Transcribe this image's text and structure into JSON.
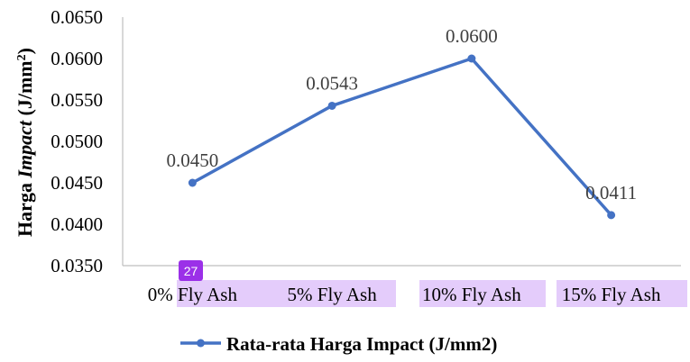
{
  "chart_data": {
    "type": "line",
    "title": "",
    "categories": [
      "0% Fly Ash",
      "5% Fly Ash",
      "10% Fly Ash",
      "15% Fly Ash"
    ],
    "series": [
      {
        "name": "Rata-rata Harga Impact (J/mm2)",
        "values": [
          0.045,
          0.0543,
          0.06,
          0.0411
        ],
        "color": "#4472c4"
      }
    ],
    "data_labels": [
      "0.0450",
      "0.0543",
      "0.0600",
      "0.0411"
    ],
    "ylabel_parts": [
      "Harga ",
      "Impact",
      " (J/mm",
      "2",
      ")"
    ],
    "ylim": [
      0.035,
      0.065
    ],
    "yticks": [
      "0.0350",
      "0.0400",
      "0.0450",
      "0.0500",
      "0.0550",
      "0.0600",
      "0.0650"
    ],
    "grid": false,
    "legend_position": "bottom",
    "highlight_color": "#e4ccfb"
  },
  "badge": {
    "label": "27",
    "color": "#9b30e8"
  }
}
